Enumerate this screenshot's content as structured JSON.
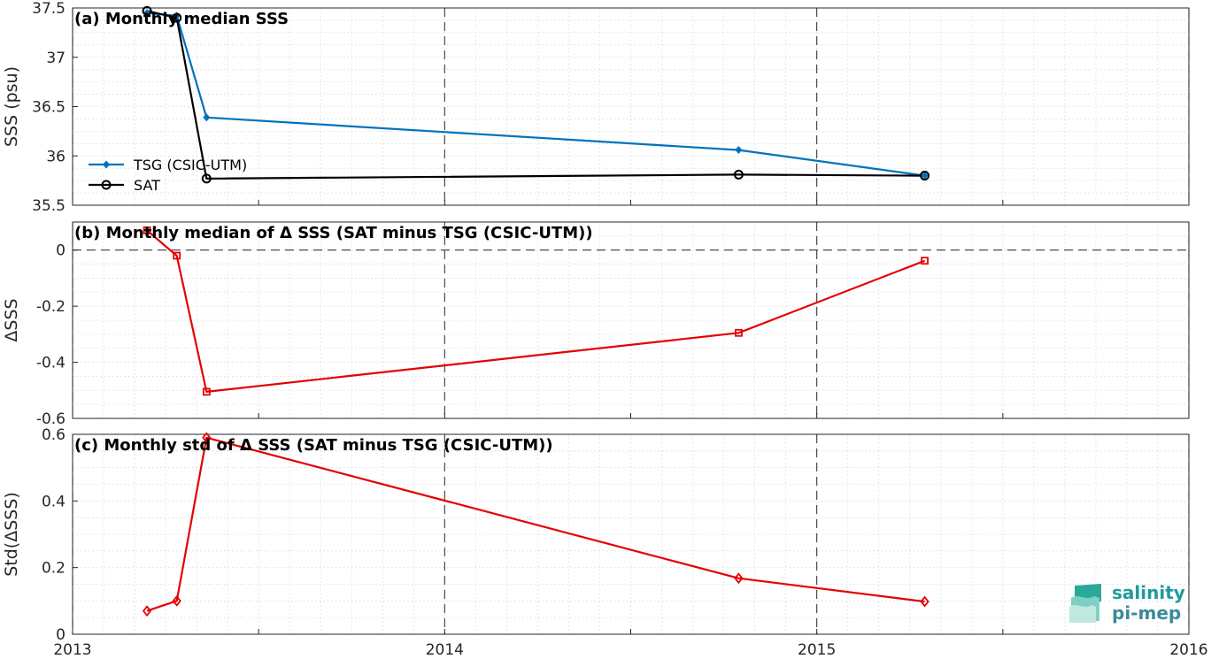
{
  "colors": {
    "tsg": "#0072BD",
    "sat": "#000000",
    "delta": "#E50000",
    "grid": "#d8d8d8"
  },
  "x_ticks": [
    {
      "value": 2013,
      "label": "2013"
    },
    {
      "value": 2014,
      "label": "2014"
    },
    {
      "value": 2015,
      "label": "2015"
    },
    {
      "value": 2016,
      "label": "2016"
    }
  ],
  "logo": {
    "line1": "salinity",
    "line2": "pi-mep"
  },
  "chart_data": [
    {
      "id": "a",
      "type": "line",
      "title": "(a) Monthly median SSS",
      "ylabel": "SSS (psu)",
      "xlim": [
        2013,
        2016
      ],
      "ylim": [
        35.5,
        37.5
      ],
      "yticks": [
        {
          "value": 35.5,
          "label": "35.5"
        },
        {
          "value": 36,
          "label": "36"
        },
        {
          "value": 36.5,
          "label": "36.5"
        },
        {
          "value": 37,
          "label": "37"
        },
        {
          "value": 37.5,
          "label": "37.5"
        }
      ],
      "legend": {
        "placement": "lower-left"
      },
      "series": [
        {
          "name": "TSG (CSIC-UTM)",
          "color": "#0072BD",
          "marker": "dot",
          "x": [
            2013.2,
            2013.28,
            2013.36,
            2014.79,
            2015.29
          ],
          "y": [
            37.45,
            37.42,
            36.39,
            36.06,
            35.8
          ]
        },
        {
          "name": "SAT",
          "color": "#000000",
          "marker": "circle",
          "x": [
            2013.2,
            2013.28,
            2013.36,
            2014.79,
            2015.29
          ],
          "y": [
            37.47,
            37.4,
            35.77,
            35.81,
            35.8
          ]
        }
      ]
    },
    {
      "id": "b",
      "type": "line",
      "title": "(b) Monthly median of Δ SSS (SAT minus TSG (CSIC-UTM))",
      "ylabel": "ΔSSS",
      "xlim": [
        2013,
        2016
      ],
      "ylim": [
        -0.6,
        0.1
      ],
      "yticks": [
        {
          "value": -0.6,
          "label": "-0.6"
        },
        {
          "value": -0.4,
          "label": "-0.4"
        },
        {
          "value": -0.2,
          "label": "-0.2"
        },
        {
          "value": 0,
          "label": "0"
        }
      ],
      "zero_line": true,
      "series": [
        {
          "color": "#E50000",
          "marker": "square",
          "x": [
            2013.2,
            2013.28,
            2013.36,
            2014.79,
            2015.29
          ],
          "y": [
            0.07,
            -0.02,
            -0.505,
            -0.295,
            -0.038
          ]
        }
      ]
    },
    {
      "id": "c",
      "type": "line",
      "title": "(c) Monthly std of Δ SSS (SAT minus TSG (CSIC-UTM))",
      "ylabel": "Std(ΔSSS)",
      "xlim": [
        2013,
        2016
      ],
      "ylim": [
        0,
        0.6
      ],
      "yticks": [
        {
          "value": 0,
          "label": "0"
        },
        {
          "value": 0.2,
          "label": "0.2"
        },
        {
          "value": 0.4,
          "label": "0.4"
        },
        {
          "value": 0.6,
          "label": "0.6"
        }
      ],
      "series": [
        {
          "color": "#E50000",
          "marker": "diamond",
          "x": [
            2013.2,
            2013.28,
            2013.36,
            2014.79,
            2015.29
          ],
          "y": [
            0.07,
            0.1,
            0.59,
            0.168,
            0.098
          ]
        }
      ]
    }
  ]
}
